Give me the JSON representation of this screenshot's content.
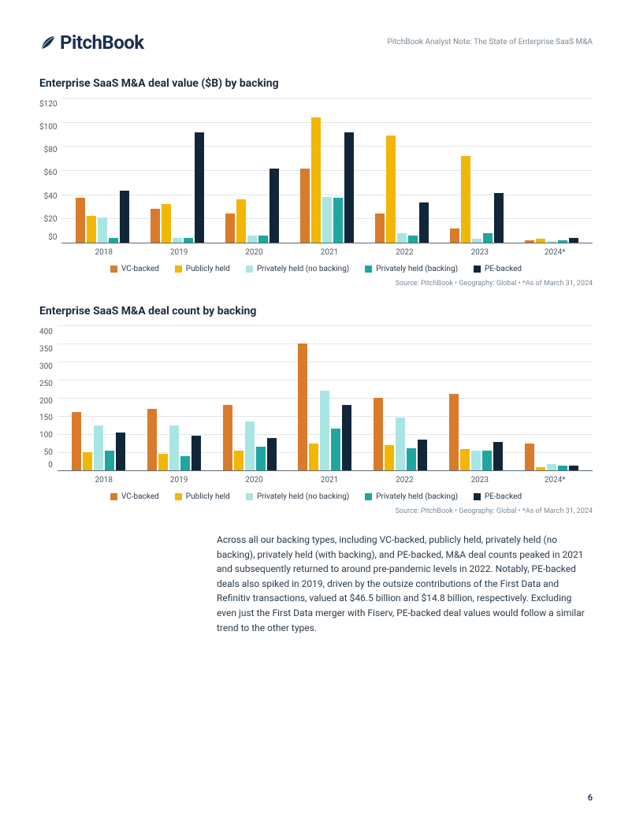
{
  "header": {
    "brand": "PitchBook",
    "note": "PitchBook Analyst Note: The State of Enterprise SaaS M&A"
  },
  "series": {
    "keys": [
      "vc",
      "pub",
      "pno",
      "pwb",
      "pe"
    ],
    "labels": {
      "vc": "VC-backed",
      "pub": "Publicly held",
      "pno": "Privately held (no backing)",
      "pwb": "Privately held (backing)",
      "pe": "PE-backed"
    },
    "colors": {
      "vc": "#d97b2a",
      "pub": "#f2b705",
      "pno": "#a9e5e3",
      "pwb": "#1fa6a0",
      "pe": "#12263a"
    }
  },
  "chart1": {
    "title": "Enterprise SaaS M&A deal value ($B) by backing",
    "y_labels": [
      "$120",
      "$100",
      "$80",
      "$60",
      "$40",
      "$20",
      "$0"
    ],
    "y_max": 120,
    "categories": [
      "2018",
      "2019",
      "2020",
      "2021",
      "2022",
      "2023",
      "2024*"
    ],
    "data": {
      "2018": {
        "vc": 37,
        "pub": 22,
        "pno": 21,
        "pwb": 4,
        "pe": 43
      },
      "2019": {
        "vc": 28,
        "pub": 32,
        "pno": 4,
        "pwb": 4,
        "pe": 91
      },
      "2020": {
        "vc": 24,
        "pub": 36,
        "pno": 6,
        "pwb": 6,
        "pe": 61
      },
      "2021": {
        "vc": 61,
        "pub": 104,
        "pno": 38,
        "pwb": 37,
        "pe": 91
      },
      "2022": {
        "vc": 24,
        "pub": 89,
        "pno": 8,
        "pwb": 6,
        "pe": 33
      },
      "2023": {
        "vc": 12,
        "pub": 72,
        "pno": 3,
        "pwb": 8,
        "pe": 41
      },
      "2024*": {
        "vc": 2,
        "pub": 3,
        "pno": 1,
        "pwb": 2,
        "pe": 4
      }
    },
    "source": "Source: PitchBook  •  Geography: Global  •  *As of March 31, 2024"
  },
  "chart2": {
    "title": "Enterprise SaaS M&A deal count by backing",
    "y_labels": [
      "400",
      "350",
      "300",
      "250",
      "200",
      "150",
      "100",
      "50",
      "0"
    ],
    "y_max": 400,
    "categories": [
      "2018",
      "2019",
      "2020",
      "2021",
      "2022",
      "2023",
      "2024*"
    ],
    "data": {
      "2018": {
        "vc": 160,
        "pub": 50,
        "pno": 125,
        "pwb": 55,
        "pe": 105
      },
      "2019": {
        "vc": 170,
        "pub": 45,
        "pno": 125,
        "pwb": 40,
        "pe": 95
      },
      "2020": {
        "vc": 180,
        "pub": 55,
        "pno": 135,
        "pwb": 65,
        "pe": 90
      },
      "2021": {
        "vc": 350,
        "pub": 75,
        "pno": 220,
        "pwb": 115,
        "pe": 180
      },
      "2022": {
        "vc": 200,
        "pub": 70,
        "pno": 145,
        "pwb": 60,
        "pe": 85
      },
      "2023": {
        "vc": 210,
        "pub": 58,
        "pno": 55,
        "pwb": 55,
        "pe": 78
      },
      "2024*": {
        "vc": 75,
        "pub": 8,
        "pno": 18,
        "pwb": 12,
        "pe": 14
      }
    },
    "source": "Source: PitchBook  •  Geography: Global  •  *As of March 31, 2024"
  },
  "body": "Across all our backing types, including VC-backed, publicly held, privately held (no backing), privately held (with backing), and PE-backed, M&A deal counts peaked in 2021 and subsequently returned to around pre-pandemic levels in 2022. Notably, PE-backed deals also spiked in 2019, driven by the outsize contributions of the First Data and Refinitiv transactions, valued at $46.5 billion and $14.8 billion, respectively. Excluding even just the First Data merger with Fiserv, PE-backed deal values would follow a similar trend to the other types.",
  "page": "6"
}
